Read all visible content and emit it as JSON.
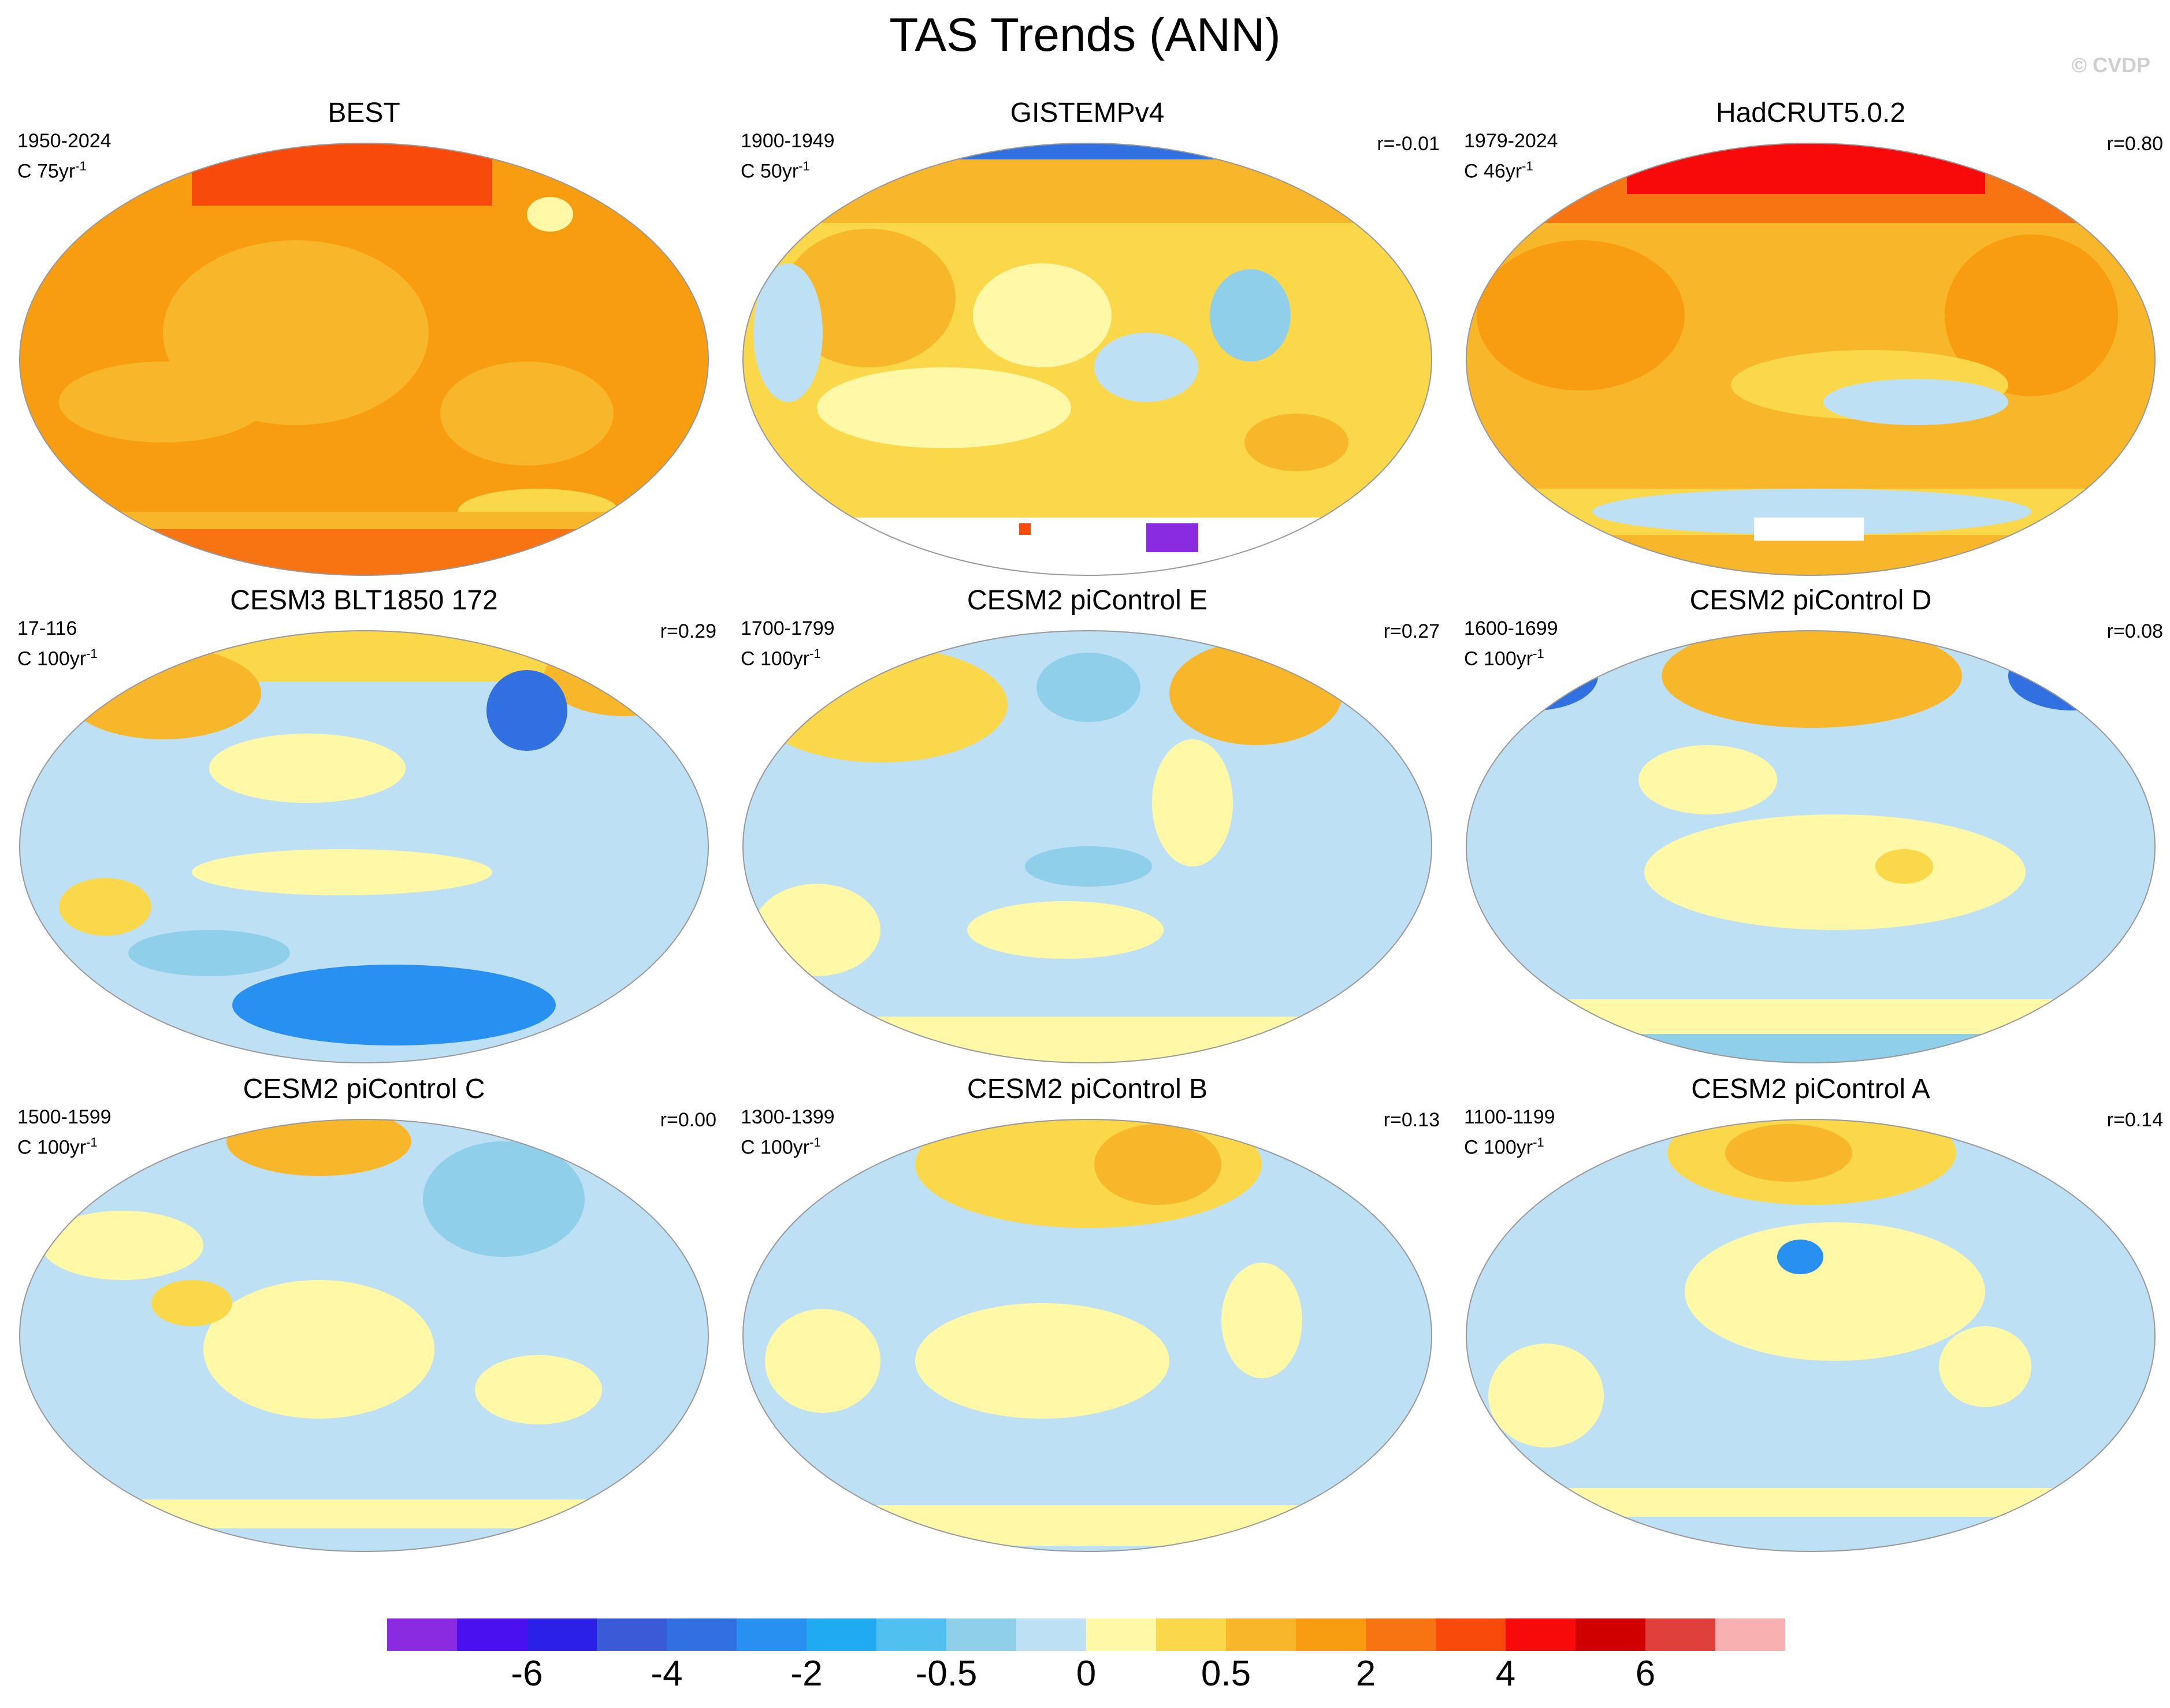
{
  "title": "TAS Trends (ANN)",
  "copyright": "© CVDP",
  "colorbar": {
    "colors": [
      "#8a2be2",
      "#4b10ef",
      "#2a20e8",
      "#3a5ad8",
      "#3070e0",
      "#2890f0",
      "#20aaf0",
      "#50c0f0",
      "#90cfea",
      "#bde0f5",
      "#fff8a6",
      "#fbd84a",
      "#f8b62a",
      "#f89c10",
      "#f87412",
      "#f84a0a",
      "#f80a0a",
      "#d00000",
      "#e0403c",
      "#f8b0b0"
    ],
    "tick_labels": [
      "-6",
      "-4",
      "-2",
      "-0.5",
      "0",
      "0.5",
      "2",
      "4",
      "6"
    ]
  },
  "panels": [
    {
      "name": "BEST",
      "period": "1950-2024",
      "units": "C 75yr",
      "sup": "-1",
      "corr": ""
    },
    {
      "name": "GISTEMPv4",
      "period": "1900-1949",
      "units": "C 50yr",
      "sup": "-1",
      "corr": "r=-0.01"
    },
    {
      "name": "HadCRUT5.0.2",
      "period": "1979-2024",
      "units": "C 46yr",
      "sup": "-1",
      "corr": "r=0.80"
    },
    {
      "name": "CESM3 BLT1850 172",
      "period": "17-116",
      "units": "C 100yr",
      "sup": "-1",
      "corr": "r=0.29"
    },
    {
      "name": "CESM2 piControl E",
      "period": "1700-1799",
      "units": "C 100yr",
      "sup": "-1",
      "corr": "r=0.27"
    },
    {
      "name": "CESM2 piControl D",
      "period": "1600-1699",
      "units": "C 100yr",
      "sup": "-1",
      "corr": "r=0.08"
    },
    {
      "name": "CESM2 piControl C",
      "period": "1500-1599",
      "units": "C 100yr",
      "sup": "-1",
      "corr": "r=0.00"
    },
    {
      "name": "CESM2 piControl B",
      "period": "1300-1399",
      "units": "C 100yr",
      "sup": "-1",
      "corr": "r=0.13"
    },
    {
      "name": "CESM2 piControl A",
      "period": "1100-1199",
      "units": "C 100yr",
      "sup": "-1",
      "corr": "r=0.14"
    }
  ]
}
